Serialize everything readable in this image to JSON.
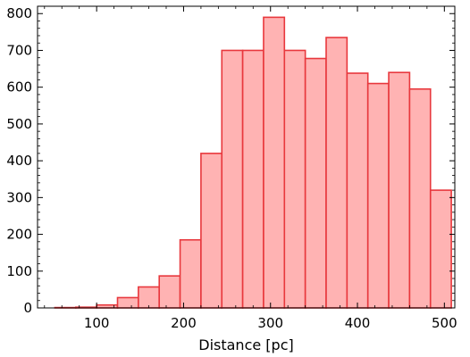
{
  "chart_data": {
    "type": "bar",
    "title": "",
    "xlabel": "Distance [pc]",
    "ylabel": "",
    "xlim": [
      32,
      512
    ],
    "ylim": [
      0,
      820
    ],
    "bin_width": 24,
    "bins": [
      {
        "start": 52,
        "end": 76,
        "value": 1
      },
      {
        "start": 76,
        "end": 100,
        "value": 2
      },
      {
        "start": 100,
        "end": 124,
        "value": 8
      },
      {
        "start": 124,
        "end": 148,
        "value": 28
      },
      {
        "start": 148,
        "end": 172,
        "value": 57
      },
      {
        "start": 172,
        "end": 196,
        "value": 87
      },
      {
        "start": 196,
        "end": 220,
        "value": 185
      },
      {
        "start": 220,
        "end": 244,
        "value": 420
      },
      {
        "start": 244,
        "end": 268,
        "value": 700
      },
      {
        "start": 268,
        "end": 292,
        "value": 700
      },
      {
        "start": 292,
        "end": 316,
        "value": 790
      },
      {
        "start": 316,
        "end": 340,
        "value": 700
      },
      {
        "start": 340,
        "end": 364,
        "value": 678
      },
      {
        "start": 364,
        "end": 388,
        "value": 735
      },
      {
        "start": 388,
        "end": 412,
        "value": 638
      },
      {
        "start": 412,
        "end": 436,
        "value": 610
      },
      {
        "start": 436,
        "end": 460,
        "value": 640
      },
      {
        "start": 460,
        "end": 484,
        "value": 595
      },
      {
        "start": 484,
        "end": 508,
        "value": 320
      }
    ],
    "x_ticks": [
      "100",
      "200",
      "300",
      "400",
      "500"
    ],
    "x_tick_values": [
      100,
      200,
      300,
      400,
      500
    ],
    "y_ticks": [
      "0",
      "100",
      "200",
      "300",
      "400",
      "500",
      "600",
      "700",
      "800"
    ],
    "y_tick_values": [
      0,
      100,
      200,
      300,
      400,
      500,
      600,
      700,
      800
    ],
    "colors": {
      "bar_fill": "#ffb3b3",
      "bar_edge": "#e8383d"
    },
    "grid": false
  }
}
